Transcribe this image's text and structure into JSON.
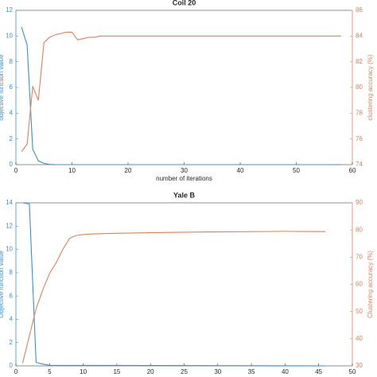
{
  "chart_data": [
    {
      "type": "line",
      "title": "Coil 20",
      "xlabel": "number of iterations",
      "ylabel": "objective function value",
      "y2label": "clustering accuracy (%)",
      "xlim": [
        0,
        60
      ],
      "xticks": [
        0,
        10,
        20,
        30,
        40,
        50,
        60
      ],
      "ylim": [
        0,
        12
      ],
      "yticks": [
        0,
        2,
        4,
        6,
        8,
        10,
        12
      ],
      "y2lim": [
        74,
        86
      ],
      "y2ticks": [
        74,
        76,
        78,
        80,
        82,
        84,
        86
      ],
      "series": [
        {
          "name": "objective function value",
          "color": "#3d8fc6",
          "x": [
            1,
            2,
            3,
            4,
            5,
            6,
            7,
            58
          ],
          "values": [
            10.7,
            9.3,
            1.2,
            0.3,
            0.1,
            0.02,
            0,
            0
          ]
        },
        {
          "name": "clustering accuracy (%)",
          "color": "#d9825b",
          "axis": "y2",
          "x": [
            1,
            2,
            3,
            4,
            5,
            6,
            7,
            8,
            9,
            10,
            11,
            12,
            13,
            14,
            15,
            58
          ],
          "values": [
            75.0,
            75.6,
            80.1,
            79.0,
            83.5,
            83.9,
            84.1,
            84.2,
            84.3,
            84.3,
            83.7,
            83.8,
            83.9,
            83.9,
            84,
            84
          ]
        }
      ]
    },
    {
      "type": "line",
      "title": "Yale B",
      "xlabel": "number of iterations",
      "ylabel": "Objective function value",
      "y2label": "Clustering accuracy (%)",
      "xlim": [
        0,
        50
      ],
      "xticks": [
        0,
        5,
        10,
        15,
        20,
        25,
        30,
        35,
        40,
        45,
        50
      ],
      "ylim": [
        0,
        14
      ],
      "yticks": [
        0,
        2,
        4,
        6,
        8,
        10,
        12,
        14
      ],
      "y2lim": [
        30,
        90
      ],
      "y2ticks": [
        30,
        40,
        50,
        60,
        70,
        80,
        90
      ],
      "series": [
        {
          "name": "Objective function value",
          "color": "#3d8fc6",
          "x": [
            1,
            2,
            3,
            4,
            5,
            46
          ],
          "values": [
            14,
            13.9,
            0.3,
            0.15,
            0.05,
            0
          ]
        },
        {
          "name": "Clustering accuracy (%)",
          "color": "#d9825b",
          "axis": "y2",
          "x": [
            1,
            2,
            3,
            4,
            5,
            6,
            7,
            8,
            9,
            10,
            11,
            12,
            15,
            20,
            25,
            30,
            40,
            46
          ],
          "values": [
            31,
            41,
            51,
            58,
            64,
            68,
            73,
            77,
            78,
            78.3,
            78.5,
            78.6,
            78.8,
            79,
            79.2,
            79.3,
            79.5,
            79.4
          ]
        }
      ]
    }
  ]
}
